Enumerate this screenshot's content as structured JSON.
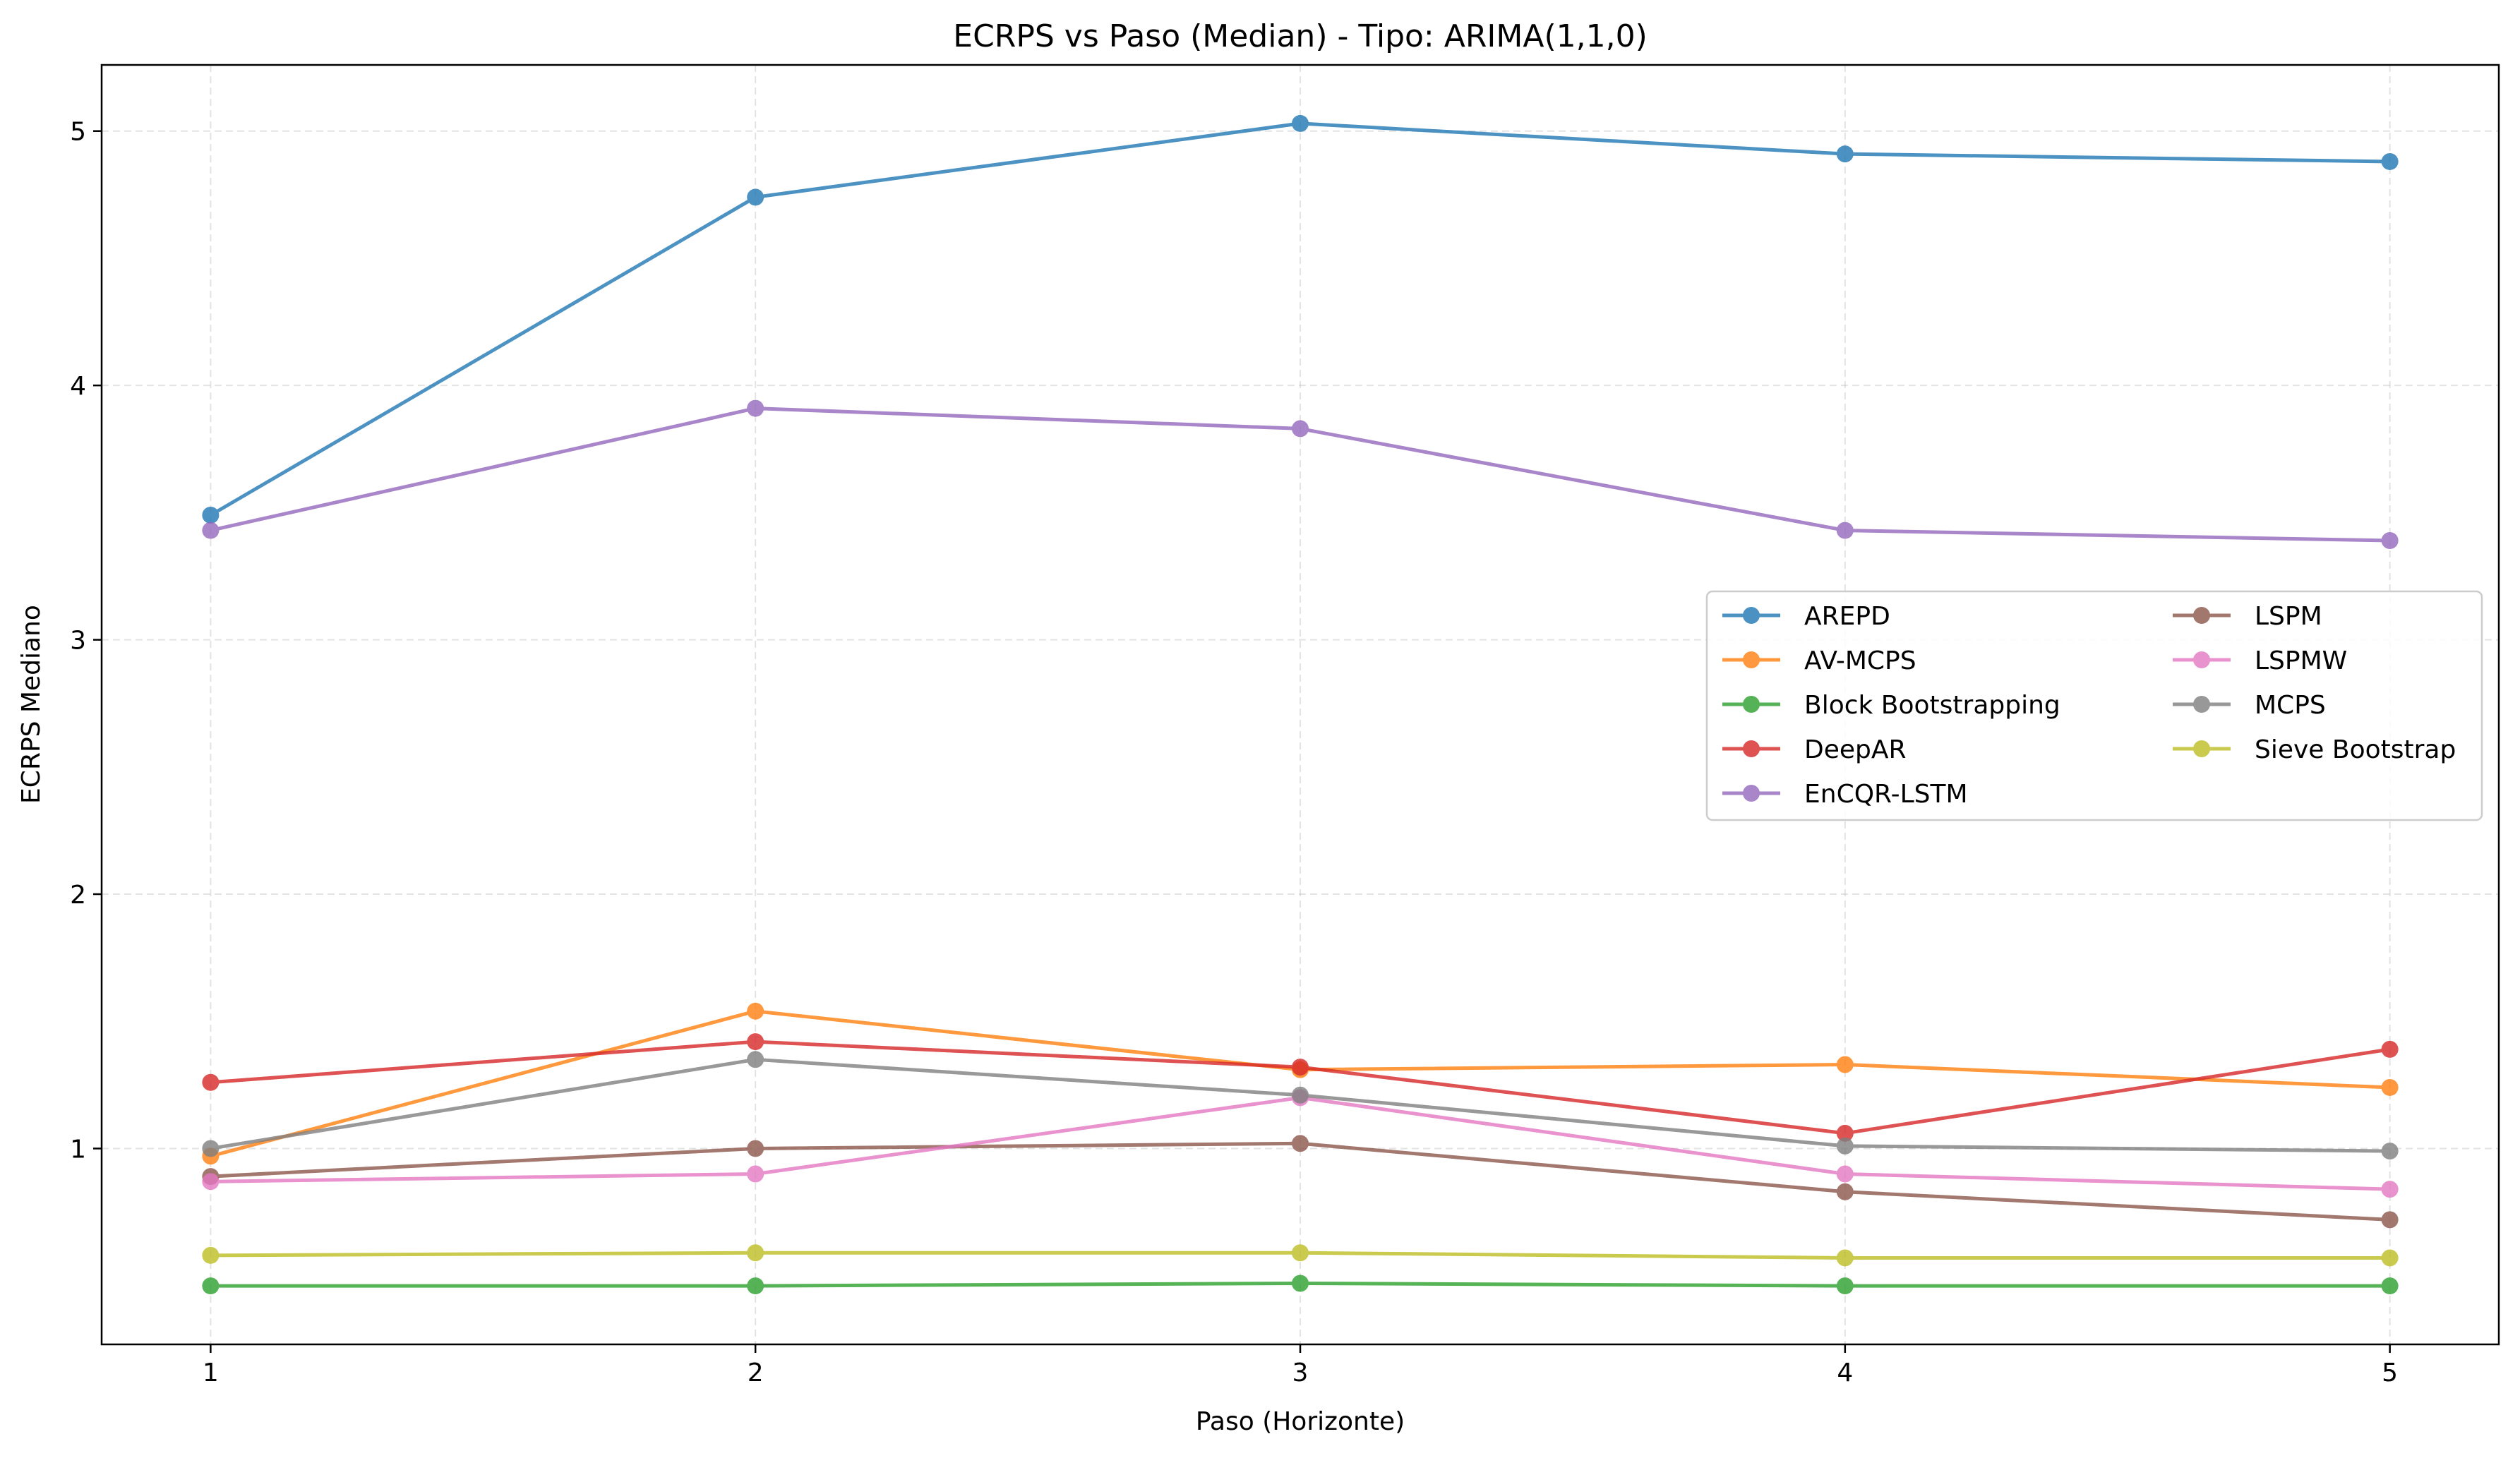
{
  "chart_data": {
    "type": "line",
    "title": "ECRPS vs Paso (Median) - Tipo: ARIMA(1,1,0)",
    "xlabel": "Paso (Horizonte)",
    "ylabel": "ECRPS Mediano",
    "x": [
      1,
      2,
      3,
      4,
      5
    ],
    "x_ticks": [
      "1",
      "2",
      "3",
      "4",
      "5"
    ],
    "y_ticks": [
      "1",
      "2",
      "3",
      "4",
      "5"
    ],
    "xlim": [
      0.8,
      5.2
    ],
    "ylim": [
      0.23,
      5.26
    ],
    "grid": true,
    "legend_position": "center-right",
    "series": [
      {
        "name": "AREPD",
        "color": "#1f77b4",
        "values": [
          3.49,
          4.74,
          5.03,
          4.91,
          4.88
        ]
      },
      {
        "name": "AV-MCPS",
        "color": "#ff7f0e",
        "values": [
          0.97,
          1.54,
          1.31,
          1.33,
          1.24
        ]
      },
      {
        "name": "Block Bootstrapping",
        "color": "#2ca02c",
        "values": [
          0.46,
          0.46,
          0.47,
          0.46,
          0.46
        ]
      },
      {
        "name": "DeepAR",
        "color": "#d62728",
        "values": [
          1.26,
          1.42,
          1.32,
          1.06,
          1.39
        ]
      },
      {
        "name": "EnCQR-LSTM",
        "color": "#9467bd",
        "values": [
          3.43,
          3.91,
          3.83,
          3.43,
          3.39
        ]
      },
      {
        "name": "LSPM",
        "color": "#8c564b",
        "values": [
          0.89,
          1.0,
          1.02,
          0.83,
          0.72
        ]
      },
      {
        "name": "LSPMW",
        "color": "#e377c2",
        "values": [
          0.87,
          0.9,
          1.2,
          0.9,
          0.84
        ]
      },
      {
        "name": "MCPS",
        "color": "#7f7f7f",
        "values": [
          1.0,
          1.35,
          1.21,
          1.01,
          0.99
        ]
      },
      {
        "name": "Sieve Bootstrap",
        "color": "#bcbd22",
        "values": [
          0.58,
          0.59,
          0.59,
          0.57,
          0.57
        ]
      }
    ]
  }
}
